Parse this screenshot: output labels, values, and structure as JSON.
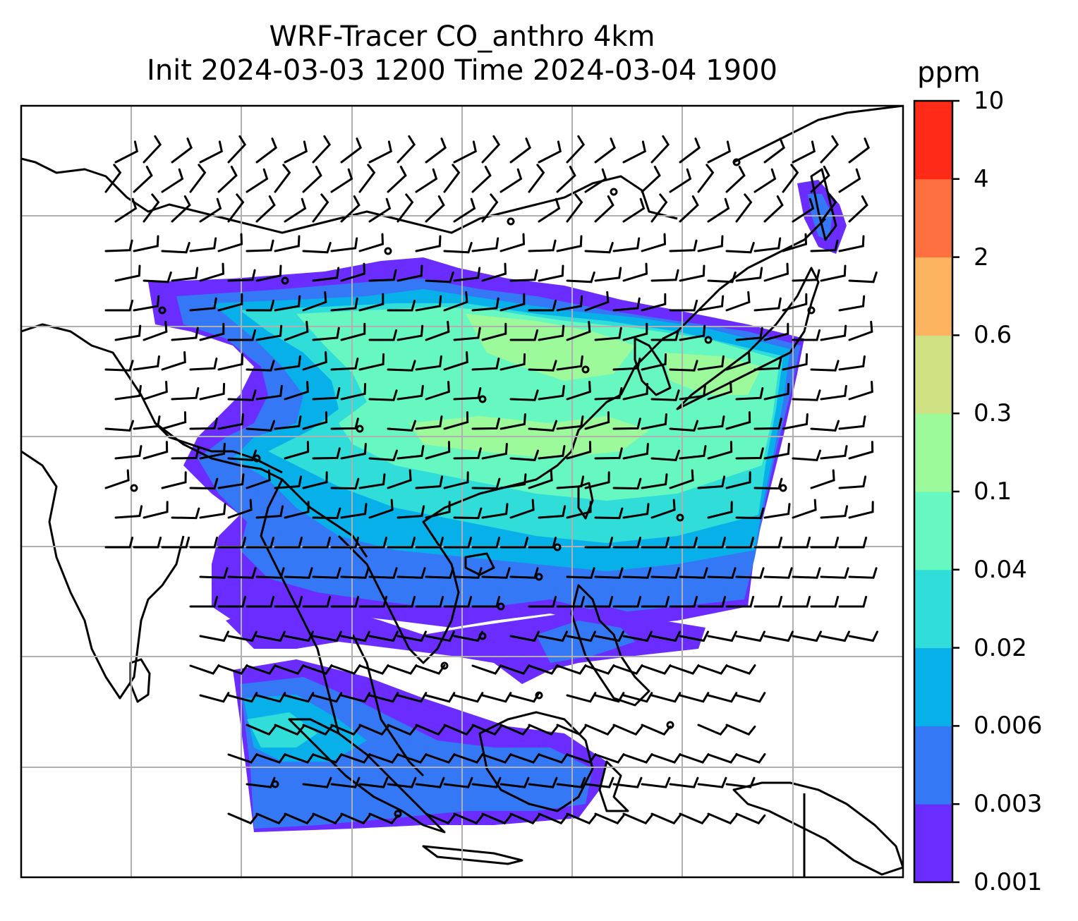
{
  "title": {
    "line1": "WRF-Tracer CO_anthro 4km",
    "line2": "Init 2024-03-03 1200 Time 2024-03-04 1900"
  },
  "colorbar": {
    "unit": "ppm",
    "levels": [
      "0.001",
      "0.003",
      "0.006",
      "0.02",
      "0.04",
      "0.1",
      "0.3",
      "0.6",
      "2",
      "4",
      "10"
    ],
    "colors": [
      "#6a2cff",
      "#3578f5",
      "#08b0ea",
      "#30ddd8",
      "#66f8c0",
      "#9dfa9a",
      "#d0e184",
      "#fdb460",
      "#ff7040",
      "#ff2a18"
    ]
  },
  "map": {
    "gridlines": true,
    "field": "CO_anthro tracer concentration",
    "overlay": "wind barbs"
  }
}
